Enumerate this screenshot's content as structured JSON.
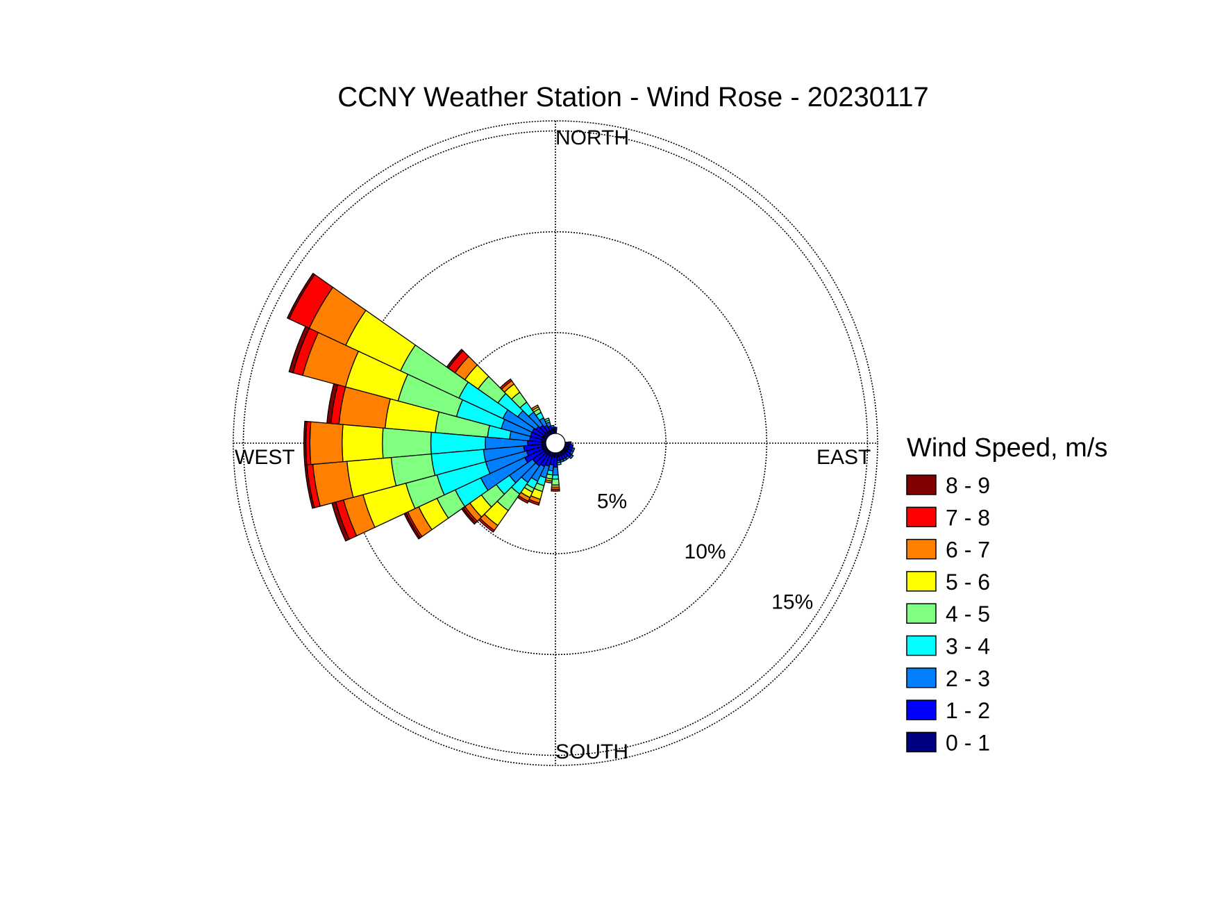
{
  "chart_data": {
    "type": "windrose",
    "title": "CCNY Weather Station - Wind Rose - 20230117",
    "direction_labels": {
      "north": "NORTH",
      "east": "EAST",
      "south": "SOUTH",
      "west": "WEST"
    },
    "radial_ticks": [
      {
        "value": 5,
        "label": "5%"
      },
      {
        "value": 10,
        "label": "10%"
      },
      {
        "value": 15,
        "label": "15%"
      }
    ],
    "rmax": 15.5,
    "legend": {
      "title": "Wind Speed, m/s",
      "placement": "right",
      "bins": [
        {
          "label": "8 - 9",
          "color": "#800000"
        },
        {
          "label": "7 - 8",
          "color": "#ff0000"
        },
        {
          "label": "6 - 7",
          "color": "#ff8000"
        },
        {
          "label": "5 - 6",
          "color": "#ffff00"
        },
        {
          "label": "4 - 5",
          "color": "#80ff80"
        },
        {
          "label": "3 - 4",
          "color": "#00ffff"
        },
        {
          "label": "2 - 3",
          "color": "#0080ff"
        },
        {
          "label": "1 - 2",
          "color": "#0000ff"
        },
        {
          "label": "0 - 1",
          "color": "#000080"
        }
      ]
    },
    "bin_order": [
      "0 - 1",
      "1 - 2",
      "2 - 3",
      "3 - 4",
      "4 - 5",
      "5 - 6",
      "6 - 7",
      "7 - 8",
      "8 - 9"
    ],
    "sectors": [
      {
        "direction_deg": 300,
        "frequencies": [
          0.2,
          0.6,
          1.6,
          2.4,
          3.2,
          3.0,
          2.0,
          1.1,
          0.1
        ]
      },
      {
        "direction_deg": 290,
        "frequencies": [
          0.2,
          0.6,
          1.5,
          2.3,
          3.0,
          2.7,
          2.2,
          0.5,
          0.2
        ]
      },
      {
        "direction_deg": 280,
        "frequencies": [
          0.2,
          0.6,
          1.0,
          1.1,
          2.6,
          2.5,
          2.3,
          0.4,
          0.2
        ]
      },
      {
        "direction_deg": 270,
        "frequencies": [
          0.2,
          0.7,
          2.1,
          2.7,
          2.4,
          2.0,
          1.6,
          0.2,
          0.1
        ]
      },
      {
        "direction_deg": 260,
        "frequencies": [
          0.2,
          0.9,
          2.0,
          2.6,
          2.0,
          2.2,
          1.7,
          0.3,
          0.1
        ]
      },
      {
        "direction_deg": 250,
        "frequencies": [
          0.2,
          0.8,
          2.1,
          2.5,
          1.6,
          2.2,
          1.0,
          0.4,
          0.2
        ]
      },
      {
        "direction_deg": 240,
        "frequencies": [
          0.2,
          1.0,
          2.4,
          1.4,
          1.0,
          1.0,
          0.6,
          0.1,
          0.1
        ]
      },
      {
        "direction_deg": 230,
        "frequencies": [
          0.2,
          0.7,
          1.4,
          0.8,
          0.9,
          0.7,
          0.3,
          0.1,
          0.1
        ]
      },
      {
        "direction_deg": 220,
        "frequencies": [
          0.2,
          0.7,
          1.0,
          0.7,
          1.0,
          0.9,
          0.3,
          0.1,
          0.0
        ]
      },
      {
        "direction_deg": 210,
        "frequencies": [
          0.2,
          0.6,
          0.8,
          0.4,
          0.2,
          0.3,
          0.2,
          0.1,
          0.0
        ]
      },
      {
        "direction_deg": 200,
        "frequencies": [
          0.2,
          0.5,
          0.6,
          0.4,
          0.3,
          0.4,
          0.2,
          0.1,
          0.0
        ]
      },
      {
        "direction_deg": 190,
        "frequencies": [
          0.2,
          0.4,
          0.3,
          0.2,
          0.2,
          0.1,
          0.1,
          0.0,
          0.0
        ]
      },
      {
        "direction_deg": 180,
        "frequencies": [
          0.2,
          0.5,
          0.4,
          0.2,
          0.3,
          0.1,
          0.1,
          0.1,
          0.0
        ]
      },
      {
        "direction_deg": 170,
        "frequencies": [
          0.2,
          0.2,
          0.1,
          0.1,
          0.0,
          0.0,
          0.0,
          0.0,
          0.0
        ]
      },
      {
        "direction_deg": 160,
        "frequencies": [
          0.2,
          0.2,
          0.1,
          0.0,
          0.0,
          0.0,
          0.0,
          0.0,
          0.0
        ]
      },
      {
        "direction_deg": 150,
        "frequencies": [
          0.2,
          0.2,
          0.1,
          0.0,
          0.0,
          0.0,
          0.0,
          0.0,
          0.0
        ]
      },
      {
        "direction_deg": 310,
        "frequencies": [
          0.2,
          0.5,
          1.1,
          1.2,
          1.2,
          0.8,
          0.6,
          0.4,
          0.1
        ]
      },
      {
        "direction_deg": 320,
        "frequencies": [
          0.2,
          0.4,
          0.8,
          0.6,
          0.6,
          0.5,
          0.2,
          0.1,
          0.0
        ]
      },
      {
        "direction_deg": 330,
        "frequencies": [
          0.2,
          0.3,
          0.4,
          0.3,
          0.2,
          0.1,
          0.1,
          0.0,
          0.0
        ]
      },
      {
        "direction_deg": 340,
        "frequencies": [
          0.2,
          0.2,
          0.2,
          0.1,
          0.1,
          0.0,
          0.0,
          0.0,
          0.0
        ]
      },
      {
        "direction_deg": 350,
        "frequencies": [
          0.2,
          0.1,
          0.1,
          0.0,
          0.0,
          0.0,
          0.0,
          0.0,
          0.0
        ]
      },
      {
        "direction_deg": 0,
        "frequencies": [
          0.2,
          0.1,
          0.0,
          0.0,
          0.0,
          0.0,
          0.0,
          0.0,
          0.0
        ]
      },
      {
        "direction_deg": 90,
        "frequencies": [
          0.2,
          0.1,
          0.0,
          0.0,
          0.0,
          0.0,
          0.0,
          0.0,
          0.0
        ]
      },
      {
        "direction_deg": 100,
        "frequencies": [
          0.2,
          0.2,
          0.0,
          0.0,
          0.0,
          0.0,
          0.0,
          0.0,
          0.0
        ]
      },
      {
        "direction_deg": 110,
        "frequencies": [
          0.2,
          0.2,
          0.1,
          0.0,
          0.0,
          0.0,
          0.0,
          0.0,
          0.0
        ]
      },
      {
        "direction_deg": 120,
        "frequencies": [
          0.2,
          0.2,
          0.1,
          0.0,
          0.0,
          0.0,
          0.0,
          0.0,
          0.0
        ]
      },
      {
        "direction_deg": 130,
        "frequencies": [
          0.2,
          0.3,
          0.1,
          0.0,
          0.0,
          0.0,
          0.0,
          0.0,
          0.0
        ]
      },
      {
        "direction_deg": 140,
        "frequencies": [
          0.2,
          0.2,
          0.1,
          0.0,
          0.0,
          0.0,
          0.0,
          0.0,
          0.0
        ]
      }
    ]
  }
}
